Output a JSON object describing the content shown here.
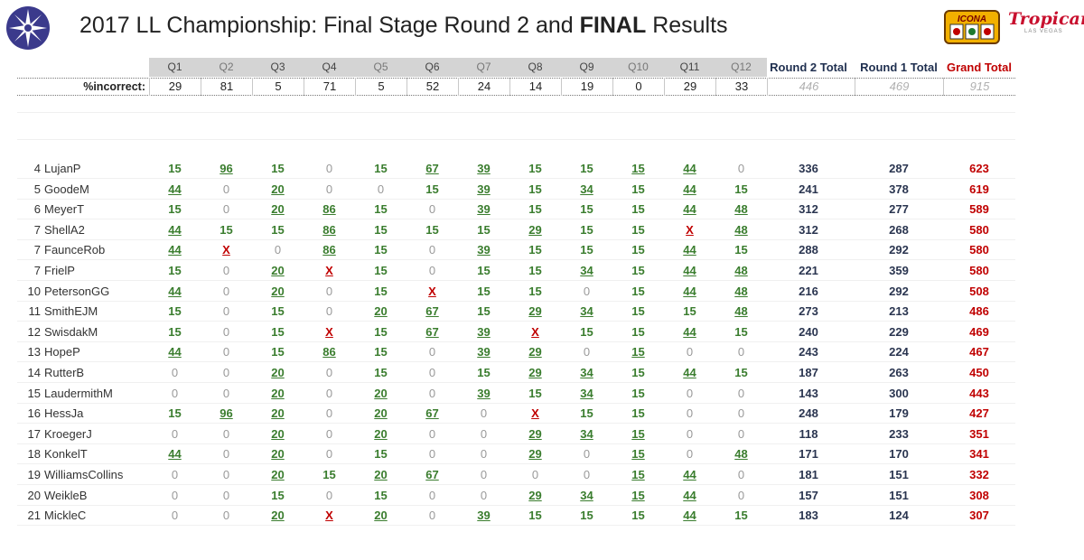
{
  "header": {
    "title_prefix": "2017 LL Championship: Final Stage Round 2 and ",
    "title_bold": "FINAL",
    "title_suffix": " Results",
    "logo_icona_text": "ICONA",
    "logo_tropicana_text": "Tropicana",
    "logo_tropicana_sub": "LAS VEGAS"
  },
  "columns": {
    "questions": [
      "Q1",
      "Q2",
      "Q3",
      "Q4",
      "Q5",
      "Q6",
      "Q7",
      "Q8",
      "Q9",
      "Q10",
      "Q11",
      "Q12"
    ],
    "round2_total": "Round 2 Total",
    "round1_total": "Round 1 Total",
    "grand_total": "Grand Total"
  },
  "pct_incorrect": {
    "label": "%incorrect:",
    "values": [
      "29",
      "81",
      "5",
      "71",
      "5",
      "52",
      "24",
      "14",
      "19",
      "0",
      "29",
      "33"
    ],
    "round2_total": "446",
    "round1_total": "469",
    "grand_total": "915"
  },
  "rows": [
    {
      "rank": "4",
      "name": "LujanP",
      "cells": [
        {
          "v": "15",
          "s": "b"
        },
        {
          "v": "96",
          "s": "u"
        },
        {
          "v": "15",
          "s": "b"
        },
        {
          "v": "0",
          "s": "z"
        },
        {
          "v": "15",
          "s": "b"
        },
        {
          "v": "67",
          "s": "u"
        },
        {
          "v": "39",
          "s": "u"
        },
        {
          "v": "15",
          "s": "b"
        },
        {
          "v": "15",
          "s": "b"
        },
        {
          "v": "15",
          "s": "u"
        },
        {
          "v": "44",
          "s": "u"
        },
        {
          "v": "0",
          "s": "z"
        }
      ],
      "r2": "336",
      "r1": "287",
      "gt": "623"
    },
    {
      "rank": "5",
      "name": "GoodeM",
      "cells": [
        {
          "v": "44",
          "s": "u"
        },
        {
          "v": "0",
          "s": "z"
        },
        {
          "v": "20",
          "s": "u"
        },
        {
          "v": "0",
          "s": "z"
        },
        {
          "v": "0",
          "s": "z"
        },
        {
          "v": "15",
          "s": "b"
        },
        {
          "v": "39",
          "s": "u"
        },
        {
          "v": "15",
          "s": "b"
        },
        {
          "v": "34",
          "s": "u"
        },
        {
          "v": "15",
          "s": "b"
        },
        {
          "v": "44",
          "s": "u"
        },
        {
          "v": "15",
          "s": "b"
        }
      ],
      "r2": "241",
      "r1": "378",
      "gt": "619"
    },
    {
      "rank": "6",
      "name": "MeyerT",
      "cells": [
        {
          "v": "15",
          "s": "b"
        },
        {
          "v": "0",
          "s": "z"
        },
        {
          "v": "20",
          "s": "u"
        },
        {
          "v": "86",
          "s": "u"
        },
        {
          "v": "15",
          "s": "b"
        },
        {
          "v": "0",
          "s": "z"
        },
        {
          "v": "39",
          "s": "u"
        },
        {
          "v": "15",
          "s": "b"
        },
        {
          "v": "15",
          "s": "b"
        },
        {
          "v": "15",
          "s": "b"
        },
        {
          "v": "44",
          "s": "u"
        },
        {
          "v": "48",
          "s": "u"
        }
      ],
      "r2": "312",
      "r1": "277",
      "gt": "589"
    },
    {
      "rank": "7",
      "name": "ShellA2",
      "cells": [
        {
          "v": "44",
          "s": "u"
        },
        {
          "v": "15",
          "s": "b"
        },
        {
          "v": "15",
          "s": "b"
        },
        {
          "v": "86",
          "s": "u"
        },
        {
          "v": "15",
          "s": "b"
        },
        {
          "v": "15",
          "s": "b"
        },
        {
          "v": "15",
          "s": "b"
        },
        {
          "v": "29",
          "s": "u"
        },
        {
          "v": "15",
          "s": "b"
        },
        {
          "v": "15",
          "s": "b"
        },
        {
          "v": "X",
          "s": "x"
        },
        {
          "v": "48",
          "s": "u"
        }
      ],
      "r2": "312",
      "r1": "268",
      "gt": "580"
    },
    {
      "rank": "7",
      "name": "FaunceRob",
      "cells": [
        {
          "v": "44",
          "s": "u"
        },
        {
          "v": "X",
          "s": "x"
        },
        {
          "v": "0",
          "s": "z"
        },
        {
          "v": "86",
          "s": "u"
        },
        {
          "v": "15",
          "s": "b"
        },
        {
          "v": "0",
          "s": "z"
        },
        {
          "v": "39",
          "s": "u"
        },
        {
          "v": "15",
          "s": "b"
        },
        {
          "v": "15",
          "s": "b"
        },
        {
          "v": "15",
          "s": "b"
        },
        {
          "v": "44",
          "s": "u"
        },
        {
          "v": "15",
          "s": "b"
        }
      ],
      "r2": "288",
      "r1": "292",
      "gt": "580"
    },
    {
      "rank": "7",
      "name": "FrielP",
      "cells": [
        {
          "v": "15",
          "s": "b"
        },
        {
          "v": "0",
          "s": "z"
        },
        {
          "v": "20",
          "s": "u"
        },
        {
          "v": "X",
          "s": "x"
        },
        {
          "v": "15",
          "s": "b"
        },
        {
          "v": "0",
          "s": "z"
        },
        {
          "v": "15",
          "s": "b"
        },
        {
          "v": "15",
          "s": "b"
        },
        {
          "v": "34",
          "s": "u"
        },
        {
          "v": "15",
          "s": "b"
        },
        {
          "v": "44",
          "s": "u"
        },
        {
          "v": "48",
          "s": "u"
        }
      ],
      "r2": "221",
      "r1": "359",
      "gt": "580"
    },
    {
      "rank": "10",
      "name": "PetersonGG",
      "cells": [
        {
          "v": "44",
          "s": "u"
        },
        {
          "v": "0",
          "s": "z"
        },
        {
          "v": "20",
          "s": "u"
        },
        {
          "v": "0",
          "s": "z"
        },
        {
          "v": "15",
          "s": "b"
        },
        {
          "v": "X",
          "s": "x"
        },
        {
          "v": "15",
          "s": "b"
        },
        {
          "v": "15",
          "s": "b"
        },
        {
          "v": "0",
          "s": "z"
        },
        {
          "v": "15",
          "s": "b"
        },
        {
          "v": "44",
          "s": "u"
        },
        {
          "v": "48",
          "s": "u"
        }
      ],
      "r2": "216",
      "r1": "292",
      "gt": "508"
    },
    {
      "rank": "11",
      "name": "SmithEJM",
      "cells": [
        {
          "v": "15",
          "s": "b"
        },
        {
          "v": "0",
          "s": "z"
        },
        {
          "v": "15",
          "s": "b"
        },
        {
          "v": "0",
          "s": "z"
        },
        {
          "v": "20",
          "s": "u"
        },
        {
          "v": "67",
          "s": "u"
        },
        {
          "v": "15",
          "s": "b"
        },
        {
          "v": "29",
          "s": "u"
        },
        {
          "v": "34",
          "s": "u"
        },
        {
          "v": "15",
          "s": "b"
        },
        {
          "v": "15",
          "s": "b"
        },
        {
          "v": "48",
          "s": "u"
        }
      ],
      "r2": "273",
      "r1": "213",
      "gt": "486"
    },
    {
      "rank": "12",
      "name": "SwisdakM",
      "cells": [
        {
          "v": "15",
          "s": "b"
        },
        {
          "v": "0",
          "s": "z"
        },
        {
          "v": "15",
          "s": "b"
        },
        {
          "v": "X",
          "s": "x"
        },
        {
          "v": "15",
          "s": "b"
        },
        {
          "v": "67",
          "s": "u"
        },
        {
          "v": "39",
          "s": "u"
        },
        {
          "v": "X",
          "s": "x"
        },
        {
          "v": "15",
          "s": "b"
        },
        {
          "v": "15",
          "s": "b"
        },
        {
          "v": "44",
          "s": "u"
        },
        {
          "v": "15",
          "s": "b"
        }
      ],
      "r2": "240",
      "r1": "229",
      "gt": "469"
    },
    {
      "rank": "13",
      "name": "HopeP",
      "cells": [
        {
          "v": "44",
          "s": "u"
        },
        {
          "v": "0",
          "s": "z"
        },
        {
          "v": "15",
          "s": "b"
        },
        {
          "v": "86",
          "s": "u"
        },
        {
          "v": "15",
          "s": "b"
        },
        {
          "v": "0",
          "s": "z"
        },
        {
          "v": "39",
          "s": "u"
        },
        {
          "v": "29",
          "s": "u"
        },
        {
          "v": "0",
          "s": "z"
        },
        {
          "v": "15",
          "s": "u"
        },
        {
          "v": "0",
          "s": "z"
        },
        {
          "v": "0",
          "s": "z"
        }
      ],
      "r2": "243",
      "r1": "224",
      "gt": "467"
    },
    {
      "rank": "14",
      "name": "RutterB",
      "cells": [
        {
          "v": "0",
          "s": "z"
        },
        {
          "v": "0",
          "s": "z"
        },
        {
          "v": "20",
          "s": "u"
        },
        {
          "v": "0",
          "s": "z"
        },
        {
          "v": "15",
          "s": "b"
        },
        {
          "v": "0",
          "s": "z"
        },
        {
          "v": "15",
          "s": "b"
        },
        {
          "v": "29",
          "s": "u"
        },
        {
          "v": "34",
          "s": "u"
        },
        {
          "v": "15",
          "s": "b"
        },
        {
          "v": "44",
          "s": "u"
        },
        {
          "v": "15",
          "s": "b"
        }
      ],
      "r2": "187",
      "r1": "263",
      "gt": "450"
    },
    {
      "rank": "15",
      "name": "LaudermithM",
      "cells": [
        {
          "v": "0",
          "s": "z"
        },
        {
          "v": "0",
          "s": "z"
        },
        {
          "v": "20",
          "s": "u"
        },
        {
          "v": "0",
          "s": "z"
        },
        {
          "v": "20",
          "s": "u"
        },
        {
          "v": "0",
          "s": "z"
        },
        {
          "v": "39",
          "s": "u"
        },
        {
          "v": "15",
          "s": "b"
        },
        {
          "v": "34",
          "s": "u"
        },
        {
          "v": "15",
          "s": "b"
        },
        {
          "v": "0",
          "s": "z"
        },
        {
          "v": "0",
          "s": "z"
        }
      ],
      "r2": "143",
      "r1": "300",
      "gt": "443"
    },
    {
      "rank": "16",
      "name": "HessJa",
      "cells": [
        {
          "v": "15",
          "s": "b"
        },
        {
          "v": "96",
          "s": "u"
        },
        {
          "v": "20",
          "s": "u"
        },
        {
          "v": "0",
          "s": "z"
        },
        {
          "v": "20",
          "s": "u"
        },
        {
          "v": "67",
          "s": "u"
        },
        {
          "v": "0",
          "s": "z"
        },
        {
          "v": "X",
          "s": "x"
        },
        {
          "v": "15",
          "s": "b"
        },
        {
          "v": "15",
          "s": "b"
        },
        {
          "v": "0",
          "s": "z"
        },
        {
          "v": "0",
          "s": "z"
        }
      ],
      "r2": "248",
      "r1": "179",
      "gt": "427"
    },
    {
      "rank": "17",
      "name": "KroegerJ",
      "cells": [
        {
          "v": "0",
          "s": "z"
        },
        {
          "v": "0",
          "s": "z"
        },
        {
          "v": "20",
          "s": "u"
        },
        {
          "v": "0",
          "s": "z"
        },
        {
          "v": "20",
          "s": "u"
        },
        {
          "v": "0",
          "s": "z"
        },
        {
          "v": "0",
          "s": "z"
        },
        {
          "v": "29",
          "s": "u"
        },
        {
          "v": "34",
          "s": "u"
        },
        {
          "v": "15",
          "s": "u"
        },
        {
          "v": "0",
          "s": "z"
        },
        {
          "v": "0",
          "s": "z"
        }
      ],
      "r2": "118",
      "r1": "233",
      "gt": "351"
    },
    {
      "rank": "18",
      "name": "KonkelT",
      "cells": [
        {
          "v": "44",
          "s": "u"
        },
        {
          "v": "0",
          "s": "z"
        },
        {
          "v": "20",
          "s": "u"
        },
        {
          "v": "0",
          "s": "z"
        },
        {
          "v": "15",
          "s": "b"
        },
        {
          "v": "0",
          "s": "z"
        },
        {
          "v": "0",
          "s": "z"
        },
        {
          "v": "29",
          "s": "u"
        },
        {
          "v": "0",
          "s": "z"
        },
        {
          "v": "15",
          "s": "u"
        },
        {
          "v": "0",
          "s": "z"
        },
        {
          "v": "48",
          "s": "u"
        }
      ],
      "r2": "171",
      "r1": "170",
      "gt": "341"
    },
    {
      "rank": "19",
      "name": "WilliamsCollins",
      "cells": [
        {
          "v": "0",
          "s": "z"
        },
        {
          "v": "0",
          "s": "z"
        },
        {
          "v": "20",
          "s": "u"
        },
        {
          "v": "15",
          "s": "b"
        },
        {
          "v": "20",
          "s": "u"
        },
        {
          "v": "67",
          "s": "u"
        },
        {
          "v": "0",
          "s": "z"
        },
        {
          "v": "0",
          "s": "z"
        },
        {
          "v": "0",
          "s": "z"
        },
        {
          "v": "15",
          "s": "u"
        },
        {
          "v": "44",
          "s": "u"
        },
        {
          "v": "0",
          "s": "z"
        }
      ],
      "r2": "181",
      "r1": "151",
      "gt": "332"
    },
    {
      "rank": "20",
      "name": "WeikleB",
      "cells": [
        {
          "v": "0",
          "s": "z"
        },
        {
          "v": "0",
          "s": "z"
        },
        {
          "v": "15",
          "s": "b"
        },
        {
          "v": "0",
          "s": "z"
        },
        {
          "v": "15",
          "s": "b"
        },
        {
          "v": "0",
          "s": "z"
        },
        {
          "v": "0",
          "s": "z"
        },
        {
          "v": "29",
          "s": "u"
        },
        {
          "v": "34",
          "s": "u"
        },
        {
          "v": "15",
          "s": "u"
        },
        {
          "v": "44",
          "s": "u"
        },
        {
          "v": "0",
          "s": "z"
        }
      ],
      "r2": "157",
      "r1": "151",
      "gt": "308"
    },
    {
      "rank": "21",
      "name": "MickleC",
      "cells": [
        {
          "v": "0",
          "s": "z"
        },
        {
          "v": "0",
          "s": "z"
        },
        {
          "v": "20",
          "s": "u"
        },
        {
          "v": "X",
          "s": "x"
        },
        {
          "v": "20",
          "s": "u"
        },
        {
          "v": "0",
          "s": "z"
        },
        {
          "v": "39",
          "s": "u"
        },
        {
          "v": "15",
          "s": "b"
        },
        {
          "v": "15",
          "s": "b"
        },
        {
          "v": "15",
          "s": "b"
        },
        {
          "v": "44",
          "s": "u"
        },
        {
          "v": "15",
          "s": "b"
        }
      ],
      "r2": "183",
      "r1": "124",
      "gt": "307"
    }
  ],
  "colors": {
    "correct": "#3a7d2e",
    "wrong": "#c00000",
    "zero": "#999999",
    "totals": "#2a3550",
    "grand_total": "#c00000",
    "header_band": "#d4d4d4"
  }
}
